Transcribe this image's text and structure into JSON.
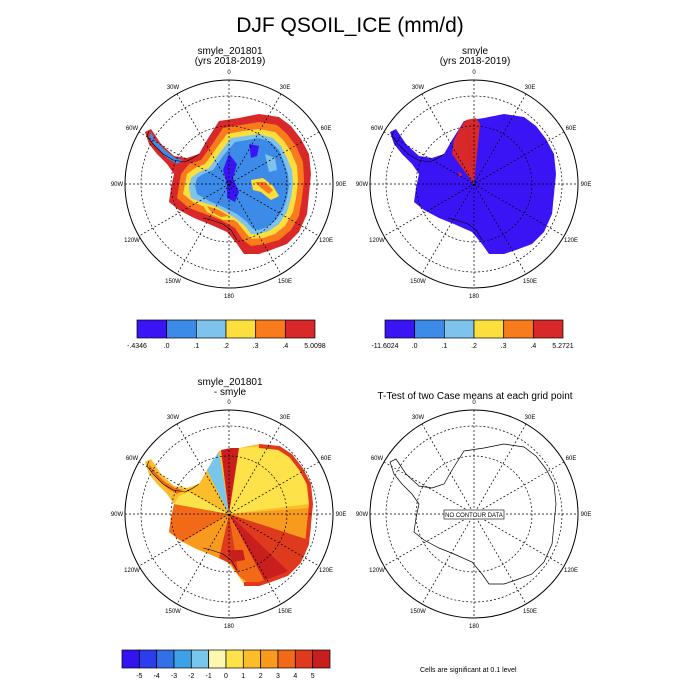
{
  "title": "DJF QSOIL_ICE (mm/d)",
  "lon_labels": [
    "0",
    "30E",
    "60E",
    "90E",
    "120E",
    "150E",
    "180",
    "150W",
    "120W",
    "90W",
    "60W",
    "30W"
  ],
  "colors": {
    "c_purple": "#3a14f5",
    "c_blue": "#3d8be8",
    "c_lightblue": "#7ec3ec",
    "c_yellow": "#fcdf3c",
    "c_orange": "#f87b1c",
    "c_red": "#d8282a",
    "d_m5": "#3214f0",
    "d_m4": "#2b3ded",
    "d_m3": "#3170e6",
    "d_m2": "#3ea0e6",
    "d_m1": "#78c6ec",
    "d_0": "#fdf8b0",
    "d_1": "#fde24a",
    "d_2": "#fbbd2a",
    "d_3": "#f79a1e",
    "d_4": "#f26a18",
    "d_5": "#e03a1e",
    "d_6": "#c81e1e"
  },
  "panels": [
    {
      "id": "case",
      "title1": "smyle_201801",
      "title2": "(yrs 2018-2019)",
      "colorbar_labels": [
        "-.4346",
        ".0",
        ".1",
        ".2",
        ".3",
        ".4",
        "5.0098"
      ]
    },
    {
      "id": "ref",
      "title1": "smyle",
      "title2": "(yrs 2018-2019)",
      "colorbar_labels": [
        "-11.6024",
        ".0",
        ".1",
        ".2",
        ".3",
        ".4",
        "5.2721"
      ]
    },
    {
      "id": "diff",
      "title1": "smyle_201801",
      "title2": "- smyle",
      "colorbar_labels": [
        "-5",
        "-4",
        "-3",
        "-2",
        "-1",
        "0",
        "1",
        "2",
        "3",
        "4",
        "5"
      ]
    },
    {
      "id": "ttest",
      "title1": "T-Test of two Case means at each grid point",
      "title2": "",
      "no_data_label": "NO CONTOUR DATA",
      "significance_note": "Cells are significant at 0.1 level"
    }
  ]
}
